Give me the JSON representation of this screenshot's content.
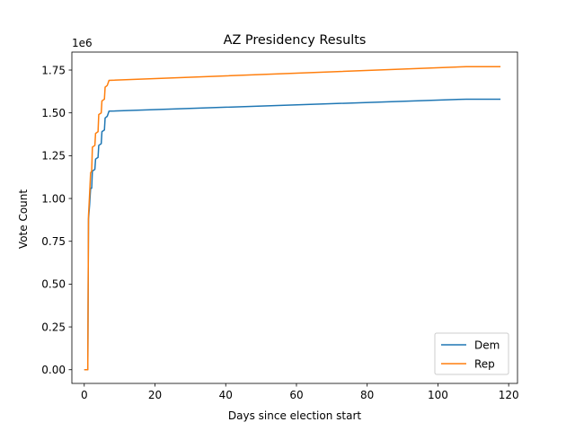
{
  "chart_data": {
    "type": "line",
    "title": "AZ Presidency Results",
    "xlabel": "Days since election start",
    "ylabel": "Vote Count",
    "y_offset_label": "1e6",
    "xlim": [
      -3.5,
      122.5
    ],
    "ylim": [
      -80000,
      1855000
    ],
    "x_ticks": [
      0,
      20,
      40,
      60,
      80,
      100,
      120
    ],
    "x_tick_labels": [
      "0",
      "20",
      "40",
      "60",
      "80",
      "100",
      "120"
    ],
    "y_ticks": [
      0,
      250000,
      500000,
      750000,
      1000000,
      1250000,
      1500000,
      1750000
    ],
    "y_tick_labels": [
      "0.00",
      "0.25",
      "0.50",
      "0.75",
      "1.00",
      "1.25",
      "1.50",
      "1.75"
    ],
    "grid": false,
    "legend_position": "lower-right",
    "series": [
      {
        "name": "Dem",
        "color": "#1f77b4",
        "points": [
          [
            0.2,
            0
          ],
          [
            1.0,
            0
          ],
          [
            1.2,
            880000
          ],
          [
            1.5,
            960000
          ],
          [
            1.8,
            1060000
          ],
          [
            2.1,
            1060000
          ],
          [
            2.3,
            1160000
          ],
          [
            3.0,
            1170000
          ],
          [
            3.2,
            1230000
          ],
          [
            3.9,
            1240000
          ],
          [
            4.1,
            1310000
          ],
          [
            4.8,
            1320000
          ],
          [
            5.0,
            1390000
          ],
          [
            5.7,
            1400000
          ],
          [
            5.9,
            1470000
          ],
          [
            6.5,
            1480000
          ],
          [
            7.0,
            1510000
          ],
          [
            108,
            1580000
          ],
          [
            117.5,
            1580000
          ]
        ]
      },
      {
        "name": "Rep",
        "color": "#ff7f0e",
        "points": [
          [
            0.2,
            0
          ],
          [
            1.0,
            0
          ],
          [
            1.2,
            900000
          ],
          [
            1.5,
            1020000
          ],
          [
            1.8,
            1150000
          ],
          [
            2.1,
            1160000
          ],
          [
            2.3,
            1300000
          ],
          [
            3.0,
            1310000
          ],
          [
            3.2,
            1380000
          ],
          [
            3.9,
            1390000
          ],
          [
            4.1,
            1490000
          ],
          [
            4.8,
            1500000
          ],
          [
            5.0,
            1570000
          ],
          [
            5.7,
            1580000
          ],
          [
            5.9,
            1650000
          ],
          [
            6.5,
            1660000
          ],
          [
            7.0,
            1690000
          ],
          [
            108,
            1770000
          ],
          [
            117.5,
            1770000
          ]
        ]
      }
    ]
  }
}
